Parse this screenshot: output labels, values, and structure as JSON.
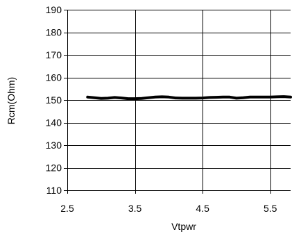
{
  "chart_data": {
    "type": "line",
    "xlabel": "Vtpwr",
    "ylabel": "Rcm(Ohm)",
    "xlim": [
      2.5,
      5.8
    ],
    "ylim": [
      110,
      190
    ],
    "x_ticks": [
      "2.5",
      "3.5",
      "4.5",
      "5.5"
    ],
    "x_tick_values": [
      2.5,
      3.5,
      4.5,
      5.5
    ],
    "y_ticks": [
      "110",
      "120",
      "130",
      "140",
      "150",
      "160",
      "170",
      "180",
      "190"
    ],
    "y_tick_values": [
      110,
      120,
      130,
      140,
      150,
      160,
      170,
      180,
      190
    ],
    "grid": true,
    "series": [
      {
        "color": "#000000",
        "x": [
          2.8,
          2.9,
          3.0,
          3.1,
          3.2,
          3.3,
          3.4,
          3.5,
          3.6,
          3.7,
          3.8,
          3.9,
          4.0,
          4.1,
          4.2,
          4.3,
          4.4,
          4.5,
          4.6,
          4.7,
          4.8,
          4.9,
          5.0,
          5.1,
          5.2,
          5.3,
          5.4,
          5.5,
          5.6,
          5.7,
          5.8
        ],
        "y": [
          151.3,
          151.0,
          150.7,
          150.8,
          151.1,
          150.9,
          150.6,
          150.6,
          150.7,
          151.0,
          151.3,
          151.4,
          151.3,
          150.9,
          150.8,
          150.8,
          150.8,
          150.9,
          151.1,
          151.2,
          151.3,
          151.3,
          150.8,
          151.0,
          151.3,
          151.3,
          151.3,
          151.3,
          151.4,
          151.5,
          151.3
        ]
      }
    ]
  }
}
